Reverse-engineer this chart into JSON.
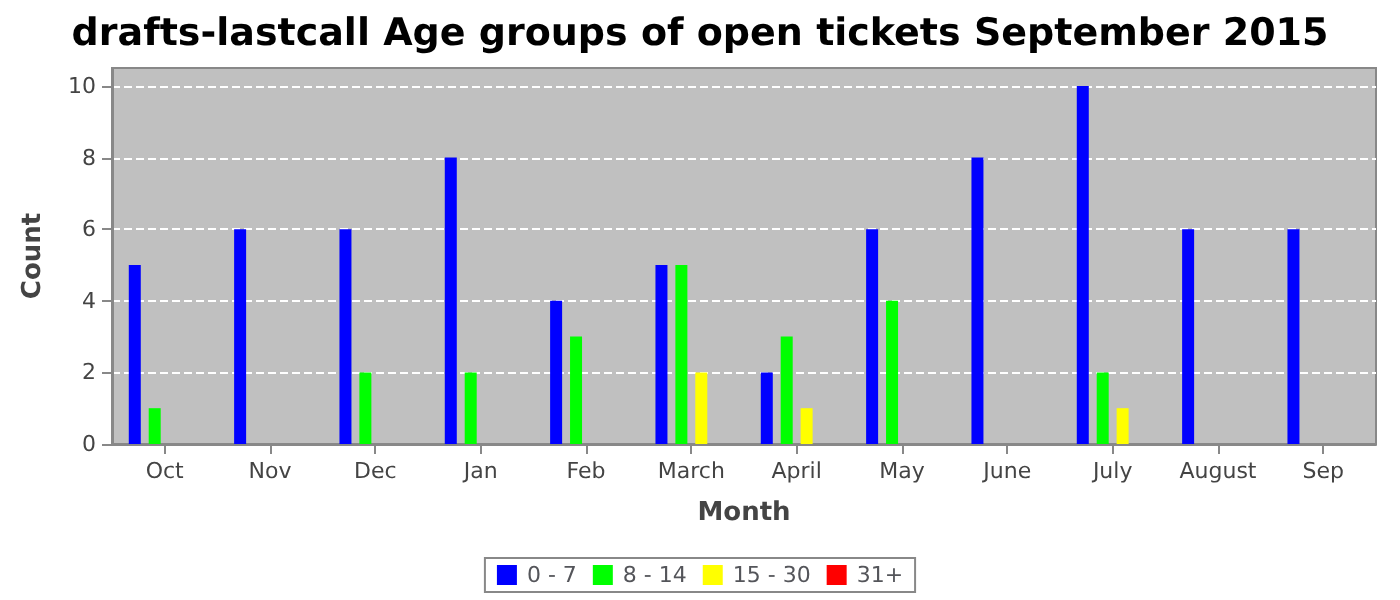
{
  "chart_data": {
    "type": "bar",
    "title": "drafts-lastcall Age groups of open tickets September 2015",
    "xlabel": "Month",
    "ylabel": "Count",
    "categories": [
      "Oct",
      "Nov",
      "Dec",
      "Jan",
      "Feb",
      "March",
      "April",
      "May",
      "June",
      "July",
      "August",
      "Sep"
    ],
    "series": [
      {
        "name": "0 - 7",
        "color": "#0000ff",
        "values": [
          5,
          6,
          6,
          8,
          4,
          5,
          2,
          6,
          8,
          10,
          6,
          6
        ]
      },
      {
        "name": "8 - 14",
        "color": "#00ff00",
        "values": [
          1,
          0,
          2,
          2,
          3,
          5,
          3,
          4,
          0,
          2,
          0,
          0
        ]
      },
      {
        "name": "15 - 30",
        "color": "#ffff00",
        "values": [
          0,
          0,
          0,
          0,
          0,
          2,
          1,
          0,
          0,
          1,
          0,
          0
        ]
      },
      {
        "name": "31+",
        "color": "#ff0000",
        "values": [
          0,
          0,
          0,
          0,
          0,
          0,
          0,
          0,
          0,
          0,
          0,
          0
        ]
      }
    ],
    "ylim": [
      0,
      10.5
    ],
    "yticks": [
      0,
      2,
      4,
      6,
      8,
      10
    ],
    "grid": "y",
    "legend": "bottom"
  }
}
